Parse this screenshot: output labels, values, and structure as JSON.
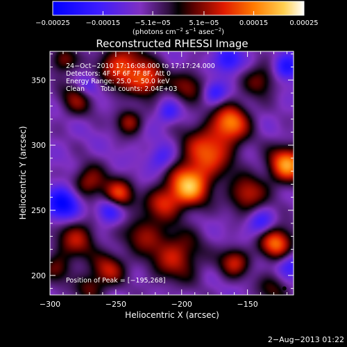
{
  "chart_data": {
    "type": "heatmap",
    "title": "Reconstructed RHESSI Image",
    "xlabel": "Heliocentric X (arcsec)",
    "ylabel": "Heliocentric Y (arcsec)",
    "xlim": [
      -300,
      -115
    ],
    "ylim": [
      185,
      372
    ],
    "x_ticks": [
      -300,
      -250,
      -200,
      -150
    ],
    "x_tick_labels": [
      "−300",
      "−250",
      "−200",
      "−150"
    ],
    "y_ticks": [
      200,
      250,
      300,
      350
    ],
    "y_tick_labels": [
      "200",
      "250",
      "300",
      "350"
    ],
    "colorbar": {
      "min": -0.00025,
      "max": 0.00025,
      "ticks": [
        -0.00025,
        -0.00015,
        -5.1e-05,
        5.1e-05,
        0.00015,
        0.00025
      ],
      "tick_labels": [
        "−0.00025",
        "−0.00015",
        "−5.1e−05",
        "5.1e−05",
        "0.00015",
        "0.00025"
      ],
      "units_text": "(photons cm",
      "units_exp1": "−2",
      "units_mid": " s",
      "units_exp2": "−1",
      "units_mid2": " asec",
      "units_exp3": "−2",
      "units_end": ")"
    },
    "annotations": [
      "24−Oct−2010 17:16:08.000 to 17:17:24.000",
      "Detectors: 4F 5F 6F 7F 8F, Att 0",
      "Energy Range: 25.0 − 50.0 keV",
      "Clean",
      "Total counts: 2.04E+03"
    ],
    "peak_label": "Position of Peak = [−195,268]",
    "peak": [
      -195,
      268
    ],
    "marker": [
      -122,
      190
    ],
    "blobs": [
      [
        -195,
        268,
        11,
        1.0
      ],
      [
        -248,
        262,
        8,
        0.75
      ],
      [
        -162,
        318,
        10,
        0.8
      ],
      [
        -120,
        285,
        10,
        0.95
      ],
      [
        -128,
        225,
        9,
        0.85
      ],
      [
        -245,
        360,
        12,
        0.75
      ],
      [
        -270,
        272,
        9,
        0.55
      ],
      [
        -205,
        215,
        14,
        0.6
      ],
      [
        -280,
        228,
        11,
        0.55
      ],
      [
        -225,
        350,
        9,
        0.65
      ],
      [
        -240,
        318,
        7,
        0.55
      ],
      [
        -180,
        295,
        14,
        0.75
      ],
      [
        -150,
        262,
        10,
        0.6
      ],
      [
        -160,
        210,
        8,
        0.6
      ],
      [
        -255,
        205,
        9,
        0.55
      ],
      [
        -280,
        335,
        9,
        0.45
      ],
      [
        -195,
        345,
        9,
        0.45
      ],
      [
        -215,
        255,
        9,
        0.55
      ],
      [
        -140,
        350,
        9,
        0.45
      ],
      [
        -230,
        232,
        10,
        0.45
      ],
      [
        -270,
        190,
        8,
        0.4
      ],
      [
        -290,
        365,
        7,
        0.5
      ],
      [
        -130,
        190,
        9,
        0.35
      ],
      [
        -295,
        205,
        8,
        0.4
      ],
      [
        -120,
        360,
        7,
        -0.55
      ],
      [
        -290,
        255,
        9,
        -0.7
      ],
      [
        -255,
        250,
        7,
        -0.5
      ],
      [
        -165,
        365,
        7,
        -0.5
      ],
      [
        -175,
        340,
        6,
        -0.4
      ],
      [
        -118,
        208,
        7,
        -0.45
      ],
      [
        -215,
        290,
        7,
        -0.35
      ],
      [
        -140,
        240,
        7,
        -0.4
      ],
      [
        -210,
        325,
        6,
        -0.35
      ],
      [
        -270,
        345,
        6,
        -0.3
      ]
    ],
    "date_stamp": "2−Aug−2013 01:22"
  }
}
